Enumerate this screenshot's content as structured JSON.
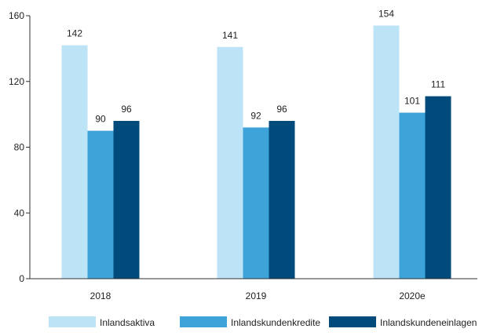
{
  "chart_data": {
    "type": "bar",
    "categories": [
      "2018",
      "2019",
      "2020e"
    ],
    "series": [
      {
        "name": "Inlandsaktiva",
        "color": "#bde3f7",
        "values": [
          142,
          141,
          154
        ]
      },
      {
        "name": "Inlandskundenkredite",
        "color": "#3ea3d8",
        "values": [
          90,
          92,
          101
        ]
      },
      {
        "name": "Inlandskundeneinlagen",
        "color": "#004a7c",
        "values": [
          96,
          96,
          111
        ]
      }
    ],
    "data_labels": [
      [
        "142",
        "90",
        "96"
      ],
      [
        "141",
        "92",
        "96"
      ],
      [
        "154",
        "101",
        "111"
      ]
    ],
    "y_ticks": [
      0,
      40,
      80,
      120,
      160
    ],
    "ylim": [
      0,
      160
    ],
    "grid": false,
    "legend_position": "bottom"
  }
}
